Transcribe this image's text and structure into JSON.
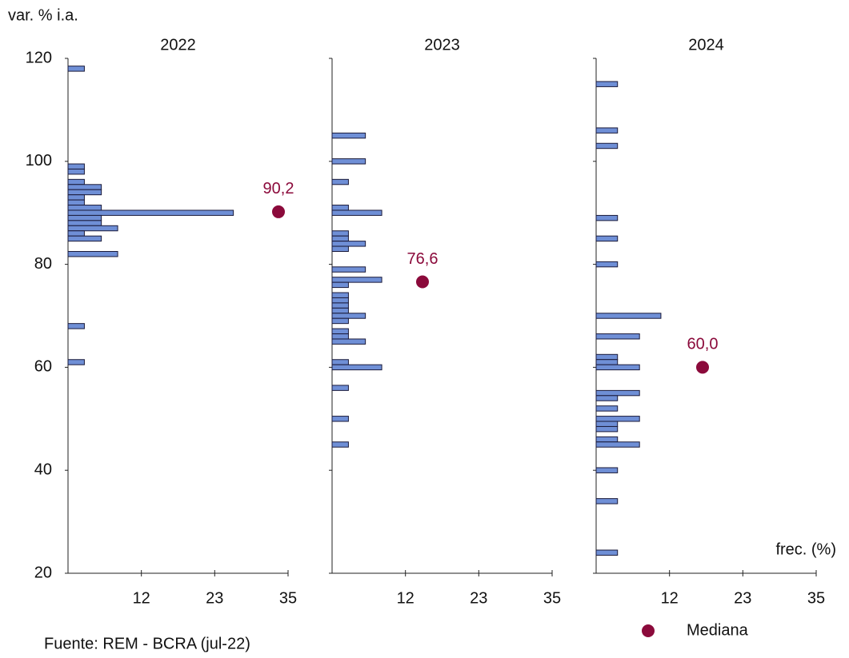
{
  "chart_data": {
    "type": "histogram",
    "orientation": "horizontal",
    "y_label": "var. % i.a.",
    "x_label": "frec. (%)",
    "source": "Fuente: REM - BCRA (jul-22)",
    "ylim": [
      20,
      120
    ],
    "yticks": [
      20,
      40,
      60,
      80,
      100,
      120
    ],
    "xlim": [
      0,
      35
    ],
    "xticks": [
      {
        "value": 11.67,
        "label": "12"
      },
      {
        "value": 23.33,
        "label": "23"
      },
      35
    ],
    "bar_color": "#6f8fd6",
    "legend": {
      "name": "Mediana",
      "color": "#8b0a3b"
    },
    "panels": [
      {
        "title": "2022",
        "y": [
          118,
          99,
          98,
          96,
          95,
          94,
          93,
          92,
          91,
          90,
          89,
          88,
          87,
          86,
          85,
          82,
          68,
          61
        ],
        "values": [
          2.6,
          2.6,
          2.6,
          2.6,
          5.3,
          5.3,
          2.6,
          2.6,
          5.3,
          26.3,
          5.3,
          5.3,
          7.9,
          2.6,
          5.3,
          7.9,
          2.6,
          2.6
        ],
        "median": {
          "value": 90.2,
          "label": "90,2"
        }
      },
      {
        "title": "2023",
        "y": [
          105,
          100,
          96,
          91,
          90,
          86,
          85,
          84,
          83,
          79,
          77,
          76,
          74,
          73,
          72,
          71,
          70,
          69,
          67,
          66,
          65,
          61,
          60,
          56,
          50,
          45
        ],
        "values": [
          5.3,
          5.3,
          2.6,
          2.6,
          7.9,
          2.6,
          2.6,
          5.3,
          2.6,
          5.3,
          7.9,
          2.6,
          2.6,
          2.6,
          2.6,
          2.6,
          5.3,
          2.6,
          2.6,
          2.6,
          5.3,
          2.6,
          7.9,
          2.6,
          2.6,
          2.6
        ],
        "median": {
          "value": 76.6,
          "label": "76,6"
        }
      },
      {
        "title": "2024",
        "y": [
          115,
          106,
          103,
          89,
          85,
          80,
          70,
          66,
          62,
          61,
          60,
          55,
          54,
          52,
          50,
          49,
          48,
          46,
          45,
          40,
          34,
          24
        ],
        "values": [
          3.4,
          3.4,
          3.4,
          3.4,
          3.4,
          3.4,
          10.3,
          6.9,
          3.4,
          3.4,
          6.9,
          6.9,
          3.4,
          3.4,
          6.9,
          3.4,
          3.4,
          3.4,
          6.9,
          3.4,
          3.4,
          3.4
        ],
        "median": {
          "value": 60.0,
          "label": "60,0"
        }
      }
    ]
  }
}
